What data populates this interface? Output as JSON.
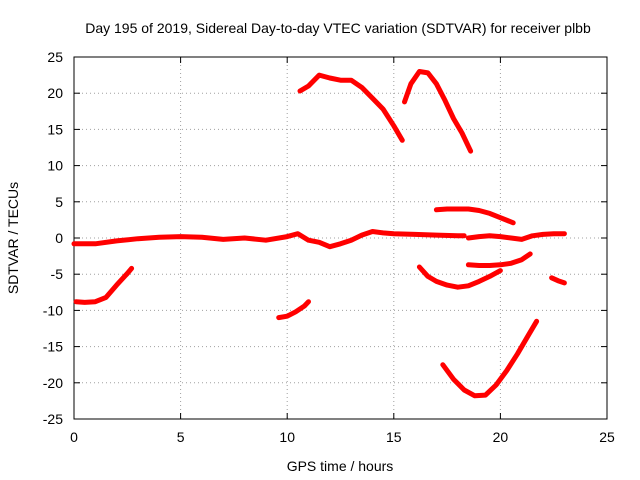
{
  "chart_data": {
    "type": "scatter",
    "title": "Day 195 of 2019, Sidereal Day-to-day VTEC variation (SDTVAR) for receiver plbb",
    "xlabel": "GPS time / hours",
    "ylabel": "SDTVAR / TECUs",
    "xlim": [
      0,
      25
    ],
    "ylim": [
      -25,
      25
    ],
    "xticks": [
      0,
      5,
      10,
      15,
      20,
      25
    ],
    "xtick_labels": [
      "0",
      "5",
      "10",
      "15",
      "20",
      "25"
    ],
    "yticks": [
      -25,
      -20,
      -15,
      -10,
      -5,
      0,
      5,
      10,
      15,
      20,
      25
    ],
    "ytick_labels": [
      "-25",
      "-20",
      "-15",
      "-10",
      "-5",
      "0",
      "5",
      "10",
      "15",
      "20",
      "25"
    ],
    "grid": true,
    "color": "#ff0000",
    "series": [
      {
        "name": "track-main",
        "x": [
          0.0,
          1.0,
          2.0,
          3.0,
          4.0,
          5.0,
          6.0,
          7.0,
          8.0,
          9.0,
          10.0,
          10.5,
          11.0,
          11.5,
          12.0,
          12.5,
          13.0,
          13.5,
          14.0,
          14.5,
          15.0,
          16.0,
          17.0,
          18.0,
          18.3
        ],
        "y": [
          -0.8,
          -0.8,
          -0.4,
          -0.1,
          0.1,
          0.2,
          0.1,
          -0.2,
          0.0,
          -0.3,
          0.2,
          0.6,
          -0.3,
          -0.6,
          -1.2,
          -0.8,
          -0.3,
          0.4,
          0.9,
          0.7,
          0.6,
          0.5,
          0.4,
          0.3,
          0.3
        ]
      },
      {
        "name": "track-mid-right",
        "x": [
          18.5,
          19.0,
          19.5,
          20.0,
          20.5,
          21.0,
          21.5,
          22.0,
          22.5,
          23.0
        ],
        "y": [
          0.0,
          0.2,
          0.3,
          0.2,
          0.0,
          -0.2,
          0.3,
          0.5,
          0.6,
          0.6
        ]
      },
      {
        "name": "track-upper-left-arc",
        "x": [
          10.6,
          11.0,
          11.5,
          12.0,
          12.5,
          13.0,
          13.5,
          14.0,
          14.5,
          15.0,
          15.4
        ],
        "y": [
          20.3,
          21.0,
          22.5,
          22.1,
          21.8,
          21.8,
          20.8,
          19.3,
          17.8,
          15.5,
          13.5
        ]
      },
      {
        "name": "track-upper-right-arc",
        "x": [
          15.5,
          15.8,
          16.2,
          16.6,
          17.0,
          17.4,
          17.8,
          18.2,
          18.6
        ],
        "y": [
          18.8,
          21.3,
          23.0,
          22.8,
          21.3,
          19.0,
          16.5,
          14.5,
          12.0
        ]
      },
      {
        "name": "track-early-dip",
        "x": [
          0.1,
          0.5,
          1.0,
          1.5,
          2.0,
          2.5,
          2.7
        ],
        "y": [
          -8.8,
          -8.9,
          -8.8,
          -8.2,
          -6.5,
          -4.9,
          -4.2
        ]
      },
      {
        "name": "track-short-1",
        "x": [
          9.6,
          10.0,
          10.4,
          10.8,
          11.0
        ],
        "y": [
          -11.0,
          -10.8,
          -10.2,
          -9.4,
          -8.8
        ]
      },
      {
        "name": "track-lower-right-arc",
        "x": [
          17.3,
          17.8,
          18.3,
          18.8,
          19.3,
          19.8,
          20.3,
          20.8,
          21.3,
          21.7
        ],
        "y": [
          -17.5,
          -19.5,
          -21.0,
          -21.8,
          -21.7,
          -20.3,
          -18.3,
          -16.0,
          -13.5,
          -11.5
        ]
      },
      {
        "name": "track-mid-low-arc",
        "x": [
          16.2,
          16.6,
          17.0,
          17.5,
          18.0,
          18.5,
          19.0,
          19.5,
          20.0
        ],
        "y": [
          -4.0,
          -5.3,
          -6.0,
          -6.5,
          -6.8,
          -6.6,
          -6.0,
          -5.3,
          -4.5
        ]
      },
      {
        "name": "track-short-2",
        "x": [
          18.5,
          19.0,
          19.5,
          20.0,
          20.5,
          21.0,
          21.4
        ],
        "y": [
          -3.7,
          -3.8,
          -3.8,
          -3.7,
          -3.5,
          -3.0,
          -2.2
        ]
      },
      {
        "name": "track-short-3",
        "x": [
          17.0,
          17.5,
          18.0,
          18.5,
          19.0,
          19.5,
          20.0,
          20.6
        ],
        "y": [
          3.9,
          4.0,
          4.0,
          4.0,
          3.8,
          3.4,
          2.8,
          2.1
        ]
      },
      {
        "name": "track-short-4",
        "x": [
          22.4,
          22.7,
          23.0
        ],
        "y": [
          -5.5,
          -5.9,
          -6.2
        ]
      }
    ]
  }
}
